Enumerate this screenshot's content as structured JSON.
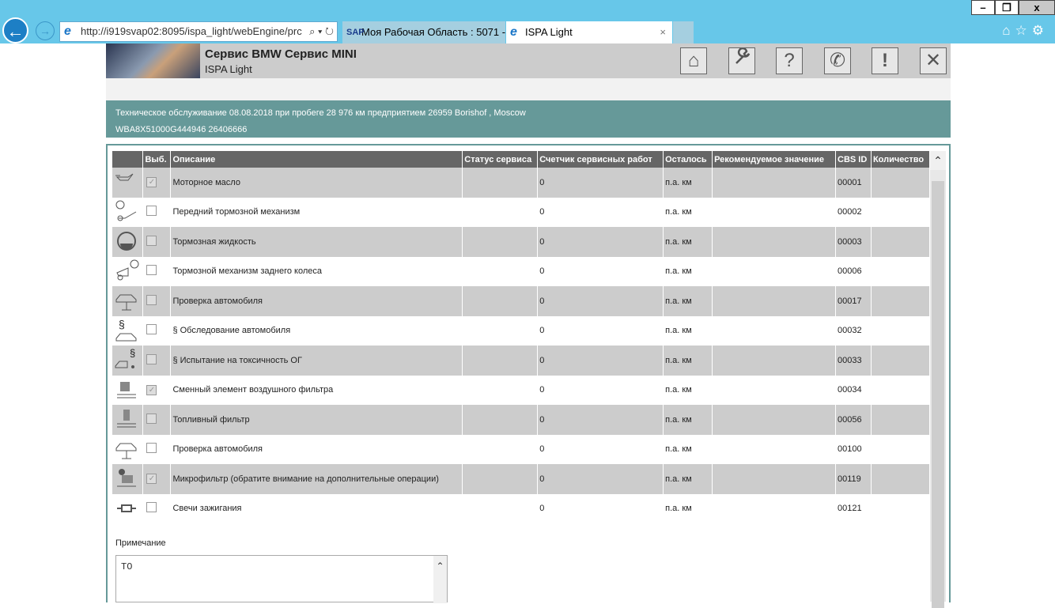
{
  "browser": {
    "url": "http://i919svap02:8095/ispa_light/webEngine/prc",
    "tabs": [
      {
        "label": "Моя Рабочая Область : 5071 -..."
      },
      {
        "label": "ISPA Light"
      }
    ],
    "window_buttons": [
      "–",
      "❐",
      "x"
    ]
  },
  "header": {
    "title": "Сервис BMW Сервис MINI",
    "subtitle": "ISPA Light",
    "buttons": [
      {
        "name": "home",
        "glyph": "⌂"
      },
      {
        "name": "wrench",
        "glyph": "🔧"
      },
      {
        "name": "help",
        "glyph": "?"
      },
      {
        "name": "phone",
        "glyph": "✆"
      },
      {
        "name": "alert",
        "glyph": "!"
      },
      {
        "name": "close",
        "glyph": "✕"
      }
    ]
  },
  "banner": {
    "line1": "Техническое обслуживание 08.08.2018 при пробеге 28 976 км предприятием 26959 Borishof , Moscow",
    "line2": "WBA8X51000G444946 26406666"
  },
  "table": {
    "columns": [
      "",
      "Выб.",
      "Описание",
      "Статус сервиса",
      "Счетчик сервисных работ",
      "Осталось",
      "Рекомендуемое значение",
      "CBS ID",
      "Количество"
    ],
    "rows": [
      {
        "icon": "oil-can-icon",
        "checked": true,
        "disabled": true,
        "desc": "Моторное масло",
        "status": "",
        "counter": "0",
        "remaining": "п.а. км",
        "recommended": "",
        "cbs": "00001",
        "qty": ""
      },
      {
        "icon": "front-brake-icon",
        "checked": false,
        "disabled": false,
        "desc": "Передний тормозной механизм",
        "status": "",
        "counter": "0",
        "remaining": "п.а. км",
        "recommended": "",
        "cbs": "00002",
        "qty": ""
      },
      {
        "icon": "brake-fluid-icon",
        "checked": false,
        "disabled": true,
        "desc": "Тормозная жидкость",
        "status": "",
        "counter": "0",
        "remaining": "п.а. км",
        "recommended": "",
        "cbs": "00003",
        "qty": ""
      },
      {
        "icon": "rear-brake-icon",
        "checked": false,
        "disabled": false,
        "desc": "Тормозной механизм заднего колеса",
        "status": "",
        "counter": "0",
        "remaining": "п.а. км",
        "recommended": "",
        "cbs": "00006",
        "qty": ""
      },
      {
        "icon": "car-lift-icon",
        "checked": false,
        "disabled": true,
        "desc": "Проверка автомобиля",
        "status": "",
        "counter": "0",
        "remaining": "п.а. км",
        "recommended": "",
        "cbs": "00017",
        "qty": ""
      },
      {
        "icon": "car-inspection-law-icon",
        "checked": false,
        "disabled": false,
        "desc": "§ Обследование автомобиля",
        "status": "",
        "counter": "0",
        "remaining": "п.а. км",
        "recommended": "",
        "cbs": "00032",
        "qty": ""
      },
      {
        "icon": "exhaust-test-icon",
        "checked": false,
        "disabled": true,
        "desc": "§ Испытание на токсичность ОГ",
        "status": "",
        "counter": "0",
        "remaining": "п.а. км",
        "recommended": "",
        "cbs": "00033",
        "qty": ""
      },
      {
        "icon": "air-filter-icon",
        "checked": true,
        "disabled": true,
        "desc": "Сменный элемент воздушного фильтра",
        "status": "",
        "counter": "0",
        "remaining": "п.а. км",
        "recommended": "",
        "cbs": "00034",
        "qty": ""
      },
      {
        "icon": "fuel-filter-icon",
        "checked": false,
        "disabled": true,
        "desc": "Топливный фильтр",
        "status": "",
        "counter": "0",
        "remaining": "п.а. км",
        "recommended": "",
        "cbs": "00056",
        "qty": ""
      },
      {
        "icon": "car-lift-icon",
        "checked": false,
        "disabled": false,
        "desc": "Проверка автомобиля",
        "status": "",
        "counter": "0",
        "remaining": "п.а. км",
        "recommended": "",
        "cbs": "00100",
        "qty": ""
      },
      {
        "icon": "microfilter-icon",
        "checked": true,
        "disabled": true,
        "desc": "Микрофильтр (обратите внимание на дополнительные операции)",
        "status": "",
        "counter": "0",
        "remaining": "п.а. км",
        "recommended": "",
        "cbs": "00119",
        "qty": ""
      },
      {
        "icon": "spark-plug-icon",
        "checked": false,
        "disabled": false,
        "desc": "Свечи зажигания",
        "status": "",
        "counter": "0",
        "remaining": "п.а. км",
        "recommended": "",
        "cbs": "00121",
        "qty": ""
      }
    ]
  },
  "notes": {
    "label": "Примечание",
    "value": "TO"
  },
  "colors": {
    "chrome": "#67c7e9",
    "header": "#cccccc",
    "banner": "#669999",
    "table_header": "#666666",
    "row_alt": "#cccccc"
  }
}
